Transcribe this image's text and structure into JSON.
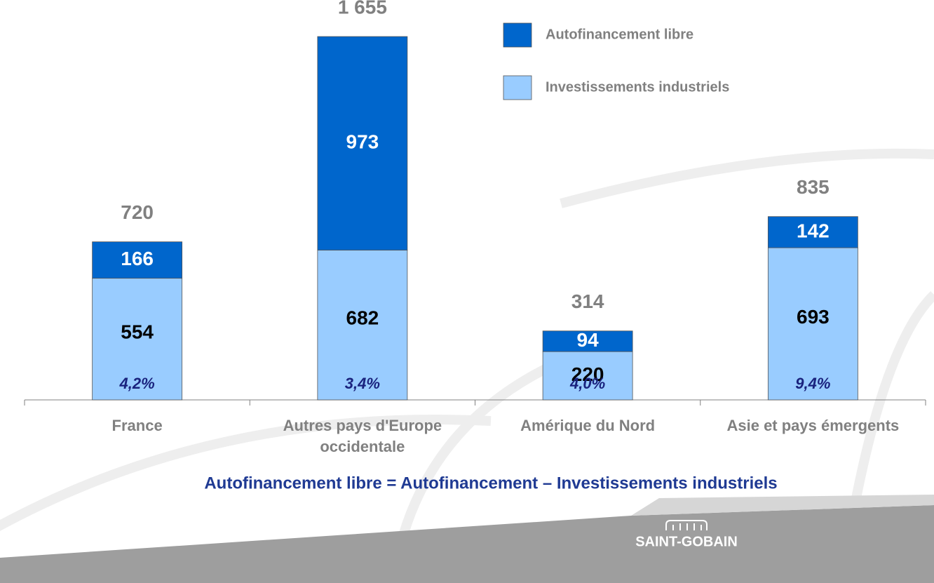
{
  "chart_data": {
    "type": "stacked_bar",
    "categories": [
      "France",
      "Autres pays d'Europe occidentale",
      "Amérique du Nord",
      "Asie et pays émergents"
    ],
    "series": [
      {
        "name": "Investissements industriels",
        "color": "#99ccff",
        "values": [
          554,
          682,
          220,
          693
        ]
      },
      {
        "name": "Autofinancement libre",
        "color": "#0066cc",
        "values": [
          166,
          973,
          94,
          142
        ]
      }
    ],
    "totals": [
      720,
      1655,
      314,
      835
    ],
    "total_labels": [
      "720",
      "1 655",
      "314",
      "835"
    ],
    "rates": [
      4.2,
      3.4,
      4.0,
      9.4
    ],
    "rate_labels": [
      "4,2%",
      "3,4%",
      "4,0%",
      "9,4%"
    ],
    "ylim": [
      0,
      1700
    ],
    "annotation": "Autofinancement libre = Autofinancement – Investissements industriels",
    "logo": "SAINT-GOBAIN"
  }
}
